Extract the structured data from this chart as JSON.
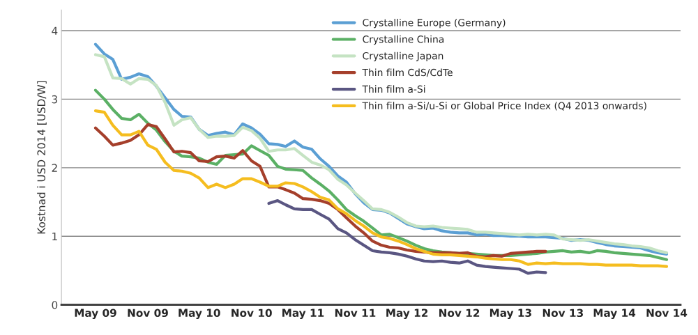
{
  "chart_data": {
    "type": "line",
    "ylabel": "Kostnad i USD 2014 [USD/W]",
    "x": [
      "2009-05",
      "2009-06",
      "2009-07",
      "2009-08",
      "2009-09",
      "2009-10",
      "2009-11",
      "2009-12",
      "2010-01",
      "2010-02",
      "2010-03",
      "2010-04",
      "2010-05",
      "2010-06",
      "2010-07",
      "2010-08",
      "2010-09",
      "2010-10",
      "2010-11",
      "2010-12",
      "2011-01",
      "2011-02",
      "2011-03",
      "2011-04",
      "2011-05",
      "2011-06",
      "2011-07",
      "2011-08",
      "2011-09",
      "2011-10",
      "2011-11",
      "2011-12",
      "2012-01",
      "2012-02",
      "2012-03",
      "2012-04",
      "2012-05",
      "2012-06",
      "2012-07",
      "2012-08",
      "2012-09",
      "2012-10",
      "2012-11",
      "2012-12",
      "2013-01",
      "2013-02",
      "2013-03",
      "2013-04",
      "2013-05",
      "2013-06",
      "2013-07",
      "2013-08",
      "2013-09",
      "2013-10",
      "2013-11",
      "2013-12",
      "2014-01",
      "2014-02",
      "2014-03",
      "2014-04",
      "2014-05",
      "2014-06",
      "2014-07",
      "2014-08",
      "2014-09",
      "2014-10",
      "2014-11"
    ],
    "series": [
      {
        "name": "Crystalline Europe (Germany)",
        "color": "#5b9fd4",
        "values": [
          3.8,
          3.66,
          3.58,
          3.29,
          3.32,
          3.37,
          3.33,
          3.19,
          3.02,
          2.85,
          2.75,
          2.74,
          2.56,
          2.47,
          2.5,
          2.52,
          2.48,
          2.64,
          2.58,
          2.49,
          2.35,
          2.34,
          2.31,
          2.39,
          2.3,
          2.27,
          2.13,
          2.02,
          1.88,
          1.79,
          1.62,
          1.49,
          1.39,
          1.38,
          1.34,
          1.26,
          1.18,
          1.14,
          1.11,
          1.12,
          1.08,
          1.06,
          1.05,
          1.05,
          1.02,
          1.03,
          1.01,
          1.01,
          1.0,
          1.0,
          0.99,
          0.99,
          0.99,
          0.98,
          0.97,
          0.94,
          0.95,
          0.94,
          0.91,
          0.88,
          0.86,
          0.85,
          0.84,
          0.83,
          0.79,
          0.76,
          0.74
        ]
      },
      {
        "name": "Crystalline China",
        "color": "#5bb065",
        "values": [
          3.13,
          3.0,
          2.85,
          2.72,
          2.7,
          2.78,
          2.65,
          2.55,
          2.38,
          2.24,
          2.17,
          2.16,
          2.14,
          2.08,
          2.05,
          2.18,
          2.19,
          2.2,
          2.32,
          2.25,
          2.18,
          2.02,
          1.98,
          1.97,
          1.96,
          1.85,
          1.76,
          1.66,
          1.53,
          1.39,
          1.3,
          1.22,
          1.12,
          1.02,
          1.03,
          0.98,
          0.93,
          0.87,
          0.82,
          0.79,
          0.77,
          0.76,
          0.75,
          0.75,
          0.74,
          0.73,
          0.72,
          0.72,
          0.72,
          0.73,
          0.74,
          0.75,
          0.77,
          0.78,
          0.79,
          0.77,
          0.78,
          0.76,
          0.79,
          0.78,
          0.76,
          0.75,
          0.74,
          0.73,
          0.72,
          0.69,
          0.66
        ]
      },
      {
        "name": "Crystalline Japan",
        "color": "#c5e3c3",
        "values": [
          3.65,
          3.62,
          3.31,
          3.3,
          3.22,
          3.3,
          3.29,
          3.2,
          2.95,
          2.62,
          2.7,
          2.73,
          2.56,
          2.44,
          2.46,
          2.46,
          2.47,
          2.59,
          2.54,
          2.43,
          2.24,
          2.26,
          2.26,
          2.28,
          2.18,
          2.08,
          2.04,
          1.97,
          1.83,
          1.75,
          1.63,
          1.52,
          1.4,
          1.39,
          1.35,
          1.28,
          1.2,
          1.15,
          1.14,
          1.15,
          1.13,
          1.12,
          1.11,
          1.1,
          1.06,
          1.06,
          1.05,
          1.04,
          1.03,
          1.02,
          1.03,
          1.02,
          1.03,
          1.02,
          0.96,
          0.95,
          0.94,
          0.95,
          0.93,
          0.91,
          0.89,
          0.88,
          0.86,
          0.85,
          0.83,
          0.79,
          0.76
        ]
      },
      {
        "name": "Thin film CdS/CdTe",
        "color": "#a53f2b",
        "values": [
          2.58,
          2.46,
          2.33,
          2.36,
          2.4,
          2.48,
          2.63,
          2.6,
          2.42,
          2.23,
          2.24,
          2.22,
          2.1,
          2.09,
          2.16,
          2.17,
          2.14,
          2.25,
          2.1,
          2.02,
          1.72,
          1.72,
          1.68,
          1.63,
          1.55,
          1.54,
          1.52,
          1.48,
          1.39,
          1.27,
          1.15,
          1.05,
          0.93,
          0.87,
          0.84,
          0.83,
          0.8,
          0.78,
          0.77,
          0.76,
          0.76,
          0.76,
          0.75,
          0.76,
          0.71,
          0.7,
          0.72,
          0.71,
          0.75,
          0.76,
          0.77,
          0.78,
          0.78,
          null,
          null,
          null,
          null,
          null,
          null,
          null,
          null,
          null,
          null,
          null,
          null,
          null,
          null
        ]
      },
      {
        "name": "Thin film a-Si",
        "color": "#5a5682",
        "values": [
          null,
          null,
          null,
          null,
          null,
          null,
          null,
          null,
          null,
          null,
          null,
          null,
          null,
          null,
          null,
          null,
          null,
          null,
          null,
          null,
          1.48,
          1.52,
          1.46,
          1.4,
          1.39,
          1.39,
          1.32,
          1.25,
          1.11,
          1.05,
          0.95,
          0.87,
          0.79,
          0.77,
          0.76,
          0.74,
          0.71,
          0.67,
          0.64,
          0.63,
          0.64,
          0.62,
          0.61,
          0.64,
          0.58,
          0.56,
          0.55,
          0.54,
          0.53,
          0.52,
          0.46,
          0.48,
          0.47,
          null,
          null,
          null,
          null,
          null,
          null,
          null,
          null,
          null,
          null,
          null,
          null,
          null,
          null
        ]
      },
      {
        "name": "Thin film a-Si/u-Si or Global Price Index (Q4 2013 onwards)",
        "color": "#f5bd1f",
        "values": [
          2.83,
          2.81,
          2.62,
          2.48,
          2.48,
          2.53,
          2.33,
          2.27,
          2.08,
          1.96,
          1.95,
          1.92,
          1.85,
          1.71,
          1.76,
          1.71,
          1.76,
          1.84,
          1.84,
          1.79,
          1.73,
          1.73,
          1.78,
          1.77,
          1.72,
          1.65,
          1.57,
          1.53,
          1.4,
          1.33,
          1.23,
          1.15,
          1.05,
          0.99,
          0.97,
          0.93,
          0.88,
          0.82,
          0.78,
          0.74,
          0.73,
          0.73,
          0.72,
          0.71,
          0.7,
          0.68,
          0.67,
          0.66,
          0.66,
          0.64,
          0.59,
          0.61,
          0.6,
          0.61,
          0.6,
          0.6,
          0.6,
          0.59,
          0.59,
          0.58,
          0.58,
          0.58,
          0.58,
          0.57,
          0.57,
          0.57,
          0.56
        ]
      }
    ],
    "xlim": [
      "2009-01-01",
      "2014-12-20"
    ],
    "xticks": [
      {
        "value": "2009-05",
        "label": "May 09"
      },
      {
        "value": "2009-11",
        "label": "Nov 09"
      },
      {
        "value": "2010-05",
        "label": "May 10"
      },
      {
        "value": "2010-11",
        "label": "Nov 10"
      },
      {
        "value": "2011-05",
        "label": "May 11"
      },
      {
        "value": "2011-11",
        "label": "Nov 11"
      },
      {
        "value": "2012-05",
        "label": "May 12"
      },
      {
        "value": "2012-11",
        "label": "Nov 12"
      },
      {
        "value": "2013-05",
        "label": "May 13"
      },
      {
        "value": "2013-11",
        "label": "Nov 13"
      },
      {
        "value": "2014-05",
        "label": "May 14"
      },
      {
        "value": "2014-11",
        "label": "Nov 14"
      }
    ],
    "ylim": [
      0,
      4.3
    ],
    "yticks": [
      0,
      1,
      2,
      3,
      4
    ],
    "grid": "y",
    "legend": "top right"
  }
}
